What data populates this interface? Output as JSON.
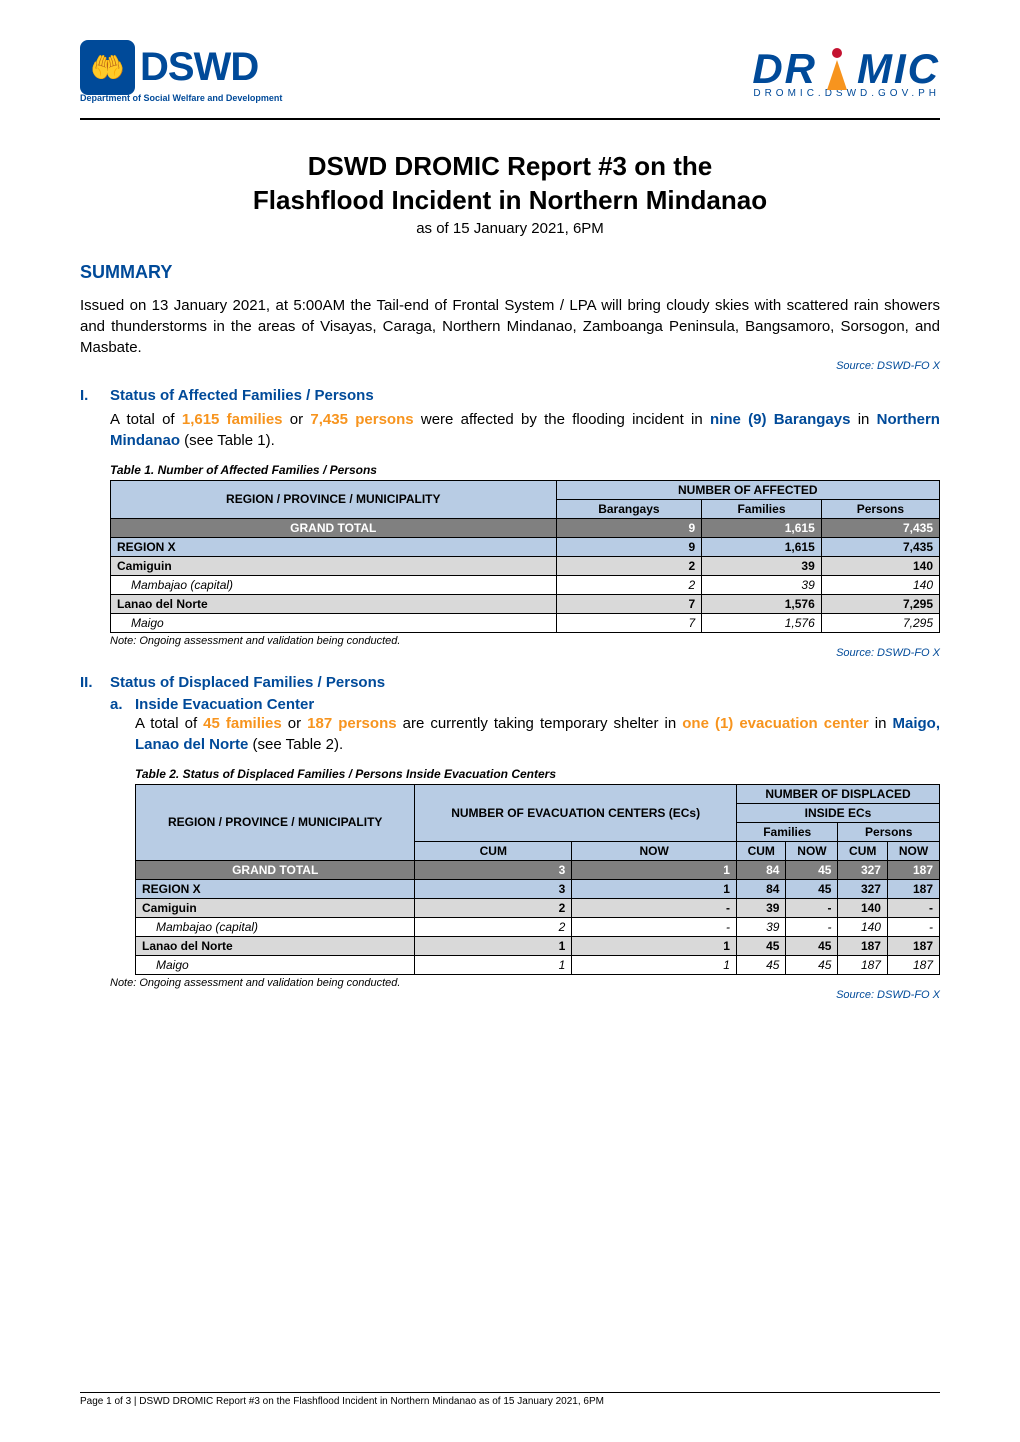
{
  "header": {
    "dswd_text": "DSWD",
    "dswd_subtitle": "Department of Social Welfare and Development",
    "dromic_text_1": "DR",
    "dromic_text_2": "MIC",
    "dromic_url": "DROMIC.DSWD.GOV.PH"
  },
  "title": {
    "line1": "DSWD DROMIC Report #3 on the",
    "line2": "Flashflood Incident in Northern Mindanao",
    "date": "as of 15 January 2021, 6PM"
  },
  "summary": {
    "heading": "SUMMARY",
    "text": "Issued on 13 January 2021, at 5:00AM the Tail-end of Frontal System / LPA will bring cloudy skies with scattered rain showers and thunderstorms in the areas of Visayas, Caraga, Northern Mindanao, Zamboanga Peninsula, Bangsamoro, Sorsogon, and Masbate.",
    "source": "Source: DSWD-FO X"
  },
  "section1": {
    "roman": "I.",
    "title": "Status of Affected Families / Persons",
    "text_pre": "A total of ",
    "families": "1,615 families",
    "text_mid1": " or ",
    "persons": "7,435 persons",
    "text_mid2": " were affected by the flooding incident in ",
    "barangays": "nine (9) Barangays",
    "text_mid3": " in ",
    "location": "Northern Mindanao",
    "text_post": " (see Table 1).",
    "table_title": "Table 1. Number of Affected Families / Persons",
    "th1": "REGION / PROVINCE / MUNICIPALITY",
    "th2": "NUMBER OF AFFECTED",
    "th_brgy": "Barangays",
    "th_fam": "Families",
    "th_per": "Persons",
    "rows": [
      {
        "label": "GRAND TOTAL",
        "brgy": "9",
        "fam": "1,615",
        "per": "7,435",
        "class": "row-grand"
      },
      {
        "label": "REGION X",
        "brgy": "9",
        "fam": "1,615",
        "per": "7,435",
        "class": "row-region"
      },
      {
        "label": "Camiguin",
        "brgy": "2",
        "fam": "39",
        "per": "140",
        "class": "row-province"
      },
      {
        "label": "Mambajao (capital)",
        "brgy": "2",
        "fam": "39",
        "per": "140",
        "class": "row-muni"
      },
      {
        "label": "Lanao del Norte",
        "brgy": "7",
        "fam": "1,576",
        "per": "7,295",
        "class": "row-province"
      },
      {
        "label": "Maigo",
        "brgy": "7",
        "fam": "1,576",
        "per": "7,295",
        "class": "row-muni"
      }
    ],
    "note": "Note: Ongoing assessment and validation being conducted.",
    "source": "Source: DSWD-FO X"
  },
  "section2": {
    "roman": "II.",
    "title": "Status of Displaced Families / Persons",
    "sub_a": {
      "mark": "a.",
      "title": "Inside Evacuation Center",
      "text_pre": "A total of ",
      "families": "45 families",
      "text_mid1": " or ",
      "persons": "187 persons",
      "text_mid2": " are currently taking temporary shelter in ",
      "ec": "one (1) evacuation center",
      "text_mid3": " in ",
      "location": "Maigo, Lanao del Norte",
      "text_post": " (see Table 2).",
      "table_title": "Table 2. Status of Displaced Families / Persons Inside Evacuation Centers",
      "th_region": "REGION / PROVINCE / MUNICIPALITY",
      "th_ec": "NUMBER OF EVACUATION CENTERS (ECs)",
      "th_disp": "NUMBER OF DISPLACED",
      "th_inside": "INSIDE ECs",
      "th_fam": "Families",
      "th_per": "Persons",
      "th_cum": "CUM",
      "th_now": "NOW",
      "rows": [
        {
          "label": "GRAND TOTAL",
          "ec_cum": "3",
          "ec_now": "1",
          "f_cum": "84",
          "f_now": "45",
          "p_cum": "327",
          "p_now": "187",
          "class": "row-grand"
        },
        {
          "label": "REGION X",
          "ec_cum": "3",
          "ec_now": "1",
          "f_cum": "84",
          "f_now": "45",
          "p_cum": "327",
          "p_now": "187",
          "class": "row-region"
        },
        {
          "label": "Camiguin",
          "ec_cum": "2",
          "ec_now": "-",
          "f_cum": "39",
          "f_now": "-",
          "p_cum": "140",
          "p_now": "-",
          "class": "row-province"
        },
        {
          "label": "Mambajao (capital)",
          "ec_cum": "2",
          "ec_now": "-",
          "f_cum": "39",
          "f_now": "-",
          "p_cum": "140",
          "p_now": "-",
          "class": "row-muni"
        },
        {
          "label": "Lanao del Norte",
          "ec_cum": "1",
          "ec_now": "1",
          "f_cum": "45",
          "f_now": "45",
          "p_cum": "187",
          "p_now": "187",
          "class": "row-province"
        },
        {
          "label": "Maigo",
          "ec_cum": "1",
          "ec_now": "1",
          "f_cum": "45",
          "f_now": "45",
          "p_cum": "187",
          "p_now": "187",
          "class": "row-muni"
        }
      ],
      "note": "Note: Ongoing assessment and validation being conducted.",
      "source": "Source: DSWD-FO X"
    }
  },
  "footer": {
    "page": "Page 1 of 3",
    "text": " | DSWD DROMIC Report #3 on the Flashflood Incident in Northern Mindanao as of 15 January 2021, 6PM"
  },
  "colors": {
    "blue": "#004a99",
    "orange": "#f7941e",
    "header_bg": "#b8cce4",
    "grand_bg": "#808080",
    "province_bg": "#d9d9d9"
  }
}
